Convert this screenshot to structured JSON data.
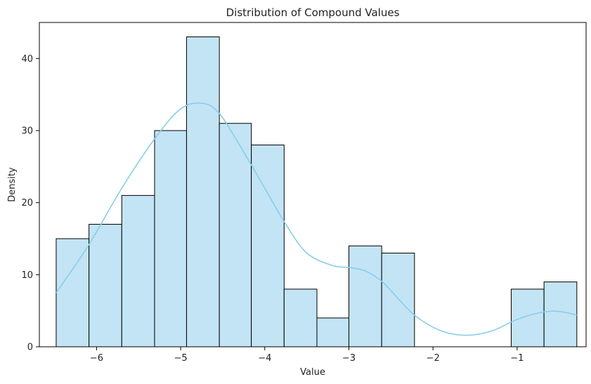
{
  "chart_data": {
    "type": "histogram",
    "title": "Distribution of Compound Values",
    "xlabel": "Value",
    "ylabel": "Density",
    "xlim": [
      -6.68,
      -0.18
    ],
    "ylim": [
      0,
      45
    ],
    "xticks": [
      -6,
      -5,
      -4,
      -3,
      -2,
      -1
    ],
    "xtick_labels": [
      "−6",
      "−5",
      "−4",
      "−3",
      "−2",
      "−1"
    ],
    "yticks": [
      0,
      10,
      20,
      30,
      40
    ],
    "ytick_labels": [
      "0",
      "10",
      "20",
      "30",
      "40"
    ],
    "grid": false,
    "bins": [
      {
        "x0": -6.48,
        "x1": -6.09,
        "count": 15
      },
      {
        "x0": -6.09,
        "x1": -5.7,
        "count": 17
      },
      {
        "x0": -5.7,
        "x1": -5.31,
        "count": 21
      },
      {
        "x0": -5.31,
        "x1": -4.93,
        "count": 30
      },
      {
        "x0": -4.93,
        "x1": -4.54,
        "count": 43
      },
      {
        "x0": -4.54,
        "x1": -4.16,
        "count": 31
      },
      {
        "x0": -4.16,
        "x1": -3.77,
        "count": 28
      },
      {
        "x0": -3.77,
        "x1": -3.38,
        "count": 8
      },
      {
        "x0": -3.38,
        "x1": -3.0,
        "count": 4
      },
      {
        "x0": -3.0,
        "x1": -2.61,
        "count": 14
      },
      {
        "x0": -2.61,
        "x1": -2.22,
        "count": 13
      },
      {
        "x0": -2.22,
        "x1": -1.84,
        "count": 0
      },
      {
        "x0": -1.84,
        "x1": -1.45,
        "count": 0
      },
      {
        "x0": -1.45,
        "x1": -1.07,
        "count": 0
      },
      {
        "x0": -1.07,
        "x1": -0.68,
        "count": 8
      },
      {
        "x0": -0.68,
        "x1": -0.29,
        "count": 9
      }
    ],
    "kde": {
      "x": [
        -6.48,
        -6.1,
        -5.7,
        -5.3,
        -5.0,
        -4.75,
        -4.55,
        -4.3,
        -4.0,
        -3.75,
        -3.5,
        -3.2,
        -3.0,
        -2.8,
        -2.6,
        -2.4,
        -2.2,
        -1.9,
        -1.6,
        -1.3,
        -1.0,
        -0.7,
        -0.5,
        -0.29
      ],
      "y": [
        7.5,
        14,
        22,
        29,
        33,
        33.8,
        32.5,
        28,
        22,
        17,
        13,
        11.3,
        11,
        10.5,
        9,
        6.5,
        4.2,
        2.2,
        1.6,
        2.2,
        3.8,
        4.8,
        4.9,
        4.4
      ]
    },
    "colors": {
      "bar_fill": "#c3e4f4",
      "bar_edge": "#000000",
      "kde_line": "#87ceeb"
    }
  }
}
